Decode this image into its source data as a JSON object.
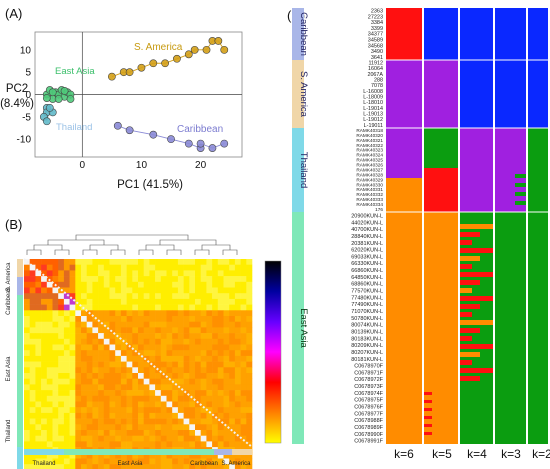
{
  "figure": {
    "panel_labels": [
      "(A)",
      "(B)",
      "(C)"
    ]
  },
  "pca": {
    "xlabel": "PC1 (41.5%)",
    "ylabel_line1": "PC2",
    "ylabel_line2": "(8.4%)",
    "xticks": [
      0,
      10,
      20
    ],
    "yticks": [
      -10,
      -5,
      0,
      5,
      10
    ],
    "xlim": [
      -8,
      27
    ],
    "ylim": [
      -14,
      14
    ],
    "groups": [
      {
        "name": "S. America",
        "color": "#d4a017",
        "points": [
          [
            5,
            4
          ],
          [
            7,
            5
          ],
          [
            8,
            5
          ],
          [
            10,
            6
          ],
          [
            12,
            7
          ],
          [
            14,
            7
          ],
          [
            16,
            8
          ],
          [
            18,
            9
          ],
          [
            19,
            10
          ],
          [
            21,
            10
          ],
          [
            22,
            12
          ],
          [
            23,
            12
          ],
          [
            24,
            10
          ]
        ]
      },
      {
        "name": "East Asia",
        "color": "#4fc97a",
        "points": [
          [
            -6,
            0
          ],
          [
            -5.5,
            1
          ],
          [
            -5,
            -1
          ],
          [
            -4.5,
            0.5
          ],
          [
            -4,
            0
          ],
          [
            -3.5,
            1
          ],
          [
            -3,
            -0.5
          ],
          [
            -2.5,
            0.5
          ],
          [
            -2,
            0
          ],
          [
            -5,
            0.5
          ],
          [
            -4,
            -1
          ],
          [
            -3,
            0.8
          ],
          [
            -6,
            -0.8
          ],
          [
            -2,
            -1
          ]
        ]
      },
      {
        "name": "Thailand",
        "color": "#62b9c9",
        "points": [
          [
            -6,
            -3
          ],
          [
            -6,
            -4
          ],
          [
            -5,
            -4
          ],
          [
            -6.5,
            -5
          ],
          [
            -5.5,
            -3
          ],
          [
            -6,
            -6
          ]
        ]
      },
      {
        "name": "Caribbean",
        "color": "#8a8ad6",
        "points": [
          [
            6,
            -7
          ],
          [
            8,
            -8
          ],
          [
            12,
            -9
          ],
          [
            15,
            -10
          ],
          [
            18,
            -11
          ],
          [
            20,
            -12
          ],
          [
            22,
            -12
          ],
          [
            24,
            -11
          ],
          [
            20,
            -11
          ]
        ]
      }
    ]
  },
  "heatmap": {
    "x_groups": [
      "Thailand",
      "East Asia",
      "Caribbean",
      "S. America"
    ],
    "y_groups": [
      "S. America",
      "Caribbean",
      "East Asia",
      "Thailand"
    ],
    "legend_colors": [
      "#ffff00",
      "#ff8000",
      "#ff0000",
      "#ff00ff",
      "#6600ff",
      "#0000a0",
      "#000000"
    ]
  },
  "structure": {
    "k_labels": [
      "k=6",
      "k=5",
      "k=4",
      "k=3",
      "k=2"
    ],
    "groups": [
      {
        "name": "Caribbean",
        "color": "#a9b6e8"
      },
      {
        "name": "S. America",
        "color": "#f0d6a8"
      },
      {
        "name": "Thailand",
        "color": "#7fd9e8"
      },
      {
        "name": "East Asia",
        "color": "#7fe8b8"
      }
    ],
    "sample_labels": {
      "Caribbean": [
        "2363",
        "27223",
        "3384",
        "3399",
        "34377",
        "34589",
        "34568",
        "3490",
        "3641"
      ],
      "S. America": [
        "11912",
        "16064",
        "2067A",
        "288",
        "7078",
        "L-16008",
        "L-18009",
        "L-18010",
        "L-19014",
        "L-19013",
        "L-19012",
        "L-19011"
      ],
      "Thailand": [
        "RAMK40318",
        "RAMK40320",
        "RAMK40321",
        "RAMK40322",
        "RAMK40323",
        "RAMK40324",
        "RAMK40325",
        "RAMK40326",
        "RAMK40327",
        "RAMK40328",
        "RAMK40329",
        "RAMK40330",
        "RAMK40331",
        "RAMK40332",
        "RAMK40333",
        "RAMK40334",
        "176"
      ],
      "East Asia": [
        "20900KUN-L",
        "44020KUN-L",
        "40700KUN-L",
        "28840KUN-L",
        "20381KUN-L",
        "62020KUN-L",
        "69033KUN-L",
        "66330KUN-L",
        "66860KUN-L",
        "64850KUN-L",
        "68860KUN-L",
        "77570KUN-L",
        "77480KUN-L",
        "77490KUN-L",
        "71070KUN-L",
        "50780KUN-L",
        "80074KUN-L",
        "80139KUN-L",
        "80183KUN-L",
        "80209KUN-L",
        "80207KUN-L",
        "80181KUN-L",
        "C0678970F",
        "C0678971F",
        "C0678972F",
        "C0678973F",
        "C0678974F",
        "C0678975F",
        "C0678976F",
        "C0678977F",
        "C0678988F",
        "C0678989F",
        "C0678990F",
        "C0678991F"
      ]
    },
    "cluster_colors": {
      "blue": "#0a28ff",
      "red": "#ff1010",
      "purple": "#a020e0",
      "green": "#0b9d10",
      "orange": "#ff8c00"
    }
  }
}
